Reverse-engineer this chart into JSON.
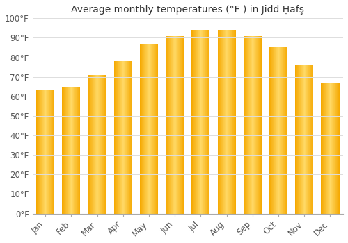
{
  "title": "Average monthly temperatures (°F ) in Jidd Ḥafş",
  "months": [
    "Jan",
    "Feb",
    "Mar",
    "Apr",
    "May",
    "Jun",
    "Jul",
    "Aug",
    "Sep",
    "Oct",
    "Nov",
    "Dec"
  ],
  "values": [
    63,
    65,
    71,
    78,
    87,
    91,
    94,
    94,
    91,
    85,
    76,
    67
  ],
  "ylim": [
    0,
    100
  ],
  "yticks": [
    0,
    10,
    20,
    30,
    40,
    50,
    60,
    70,
    80,
    90,
    100
  ],
  "ytick_labels": [
    "0°F",
    "10°F",
    "20°F",
    "30°F",
    "40°F",
    "50°F",
    "60°F",
    "70°F",
    "80°F",
    "90°F",
    "100°F"
  ],
  "bar_color_edge": "#F5A800",
  "bar_color_center": "#FFD966",
  "background_color": "#ffffff",
  "grid_color": "#dddddd",
  "title_fontsize": 10,
  "tick_fontsize": 8.5,
  "bar_width": 0.7
}
